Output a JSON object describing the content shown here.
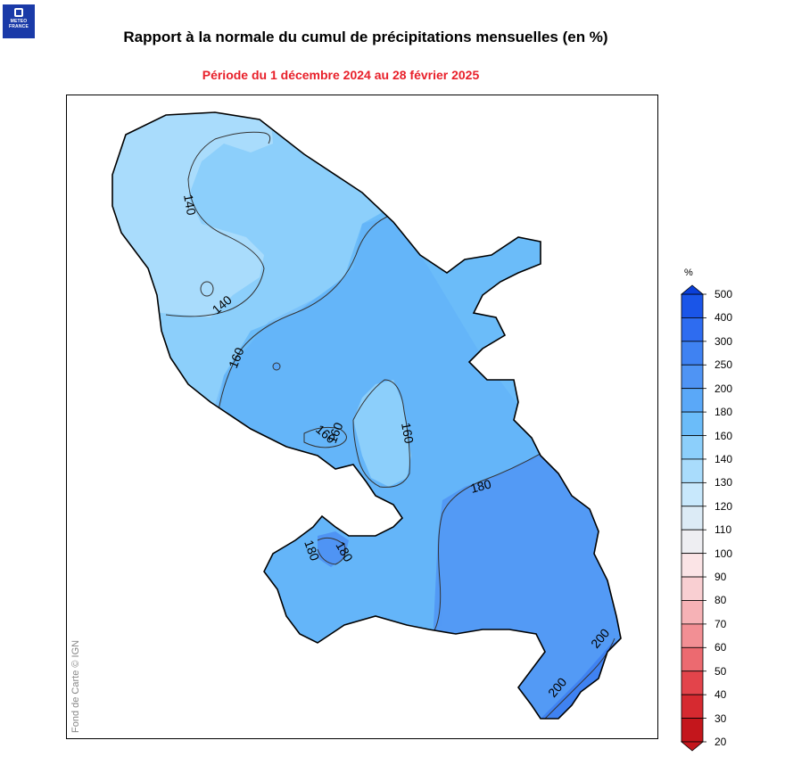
{
  "logo": {
    "line1": "METEO",
    "line2": "FRANCE"
  },
  "title": "Rapport à la normale du cumul de précipitations mensuelles (en %)",
  "subtitle": "Période du 1 décembre 2024 au 28 février 2025",
  "map": {
    "credit": "Fond de Carte © IGN",
    "contour_labels": [
      "140",
      "140",
      "160",
      "160",
      "160",
      "160",
      "180",
      "180",
      "180",
      "200",
      "200"
    ]
  },
  "legend": {
    "unit": "%",
    "levels": [
      {
        "label": "500",
        "color": "#0a3fd8"
      },
      {
        "label": "400",
        "color": "#1a55e8"
      },
      {
        "label": "300",
        "color": "#2e6cf0"
      },
      {
        "label": "250",
        "color": "#3f82f2"
      },
      {
        "label": "200",
        "color": "#4f94f4"
      },
      {
        "label": "180",
        "color": "#5aa8f8"
      },
      {
        "label": "160",
        "color": "#6bbcf9"
      },
      {
        "label": "140",
        "color": "#8ccffb"
      },
      {
        "label": "130",
        "color": "#a9dcfc"
      },
      {
        "label": "120",
        "color": "#c8e8fc"
      },
      {
        "label": "110",
        "color": "#dcebf6"
      },
      {
        "label": "100",
        "color": "#eeeef2"
      },
      {
        "label": "90",
        "color": "#fbe4e6"
      },
      {
        "label": "80",
        "color": "#f9cfd2"
      },
      {
        "label": "70",
        "color": "#f6b2b6"
      },
      {
        "label": "60",
        "color": "#f28f94"
      },
      {
        "label": "50",
        "color": "#ec6a70"
      },
      {
        "label": "40",
        "color": "#e3444b"
      },
      {
        "label": "30",
        "color": "#d62a30"
      },
      {
        "label": "20",
        "color": "#c4161c"
      }
    ]
  }
}
